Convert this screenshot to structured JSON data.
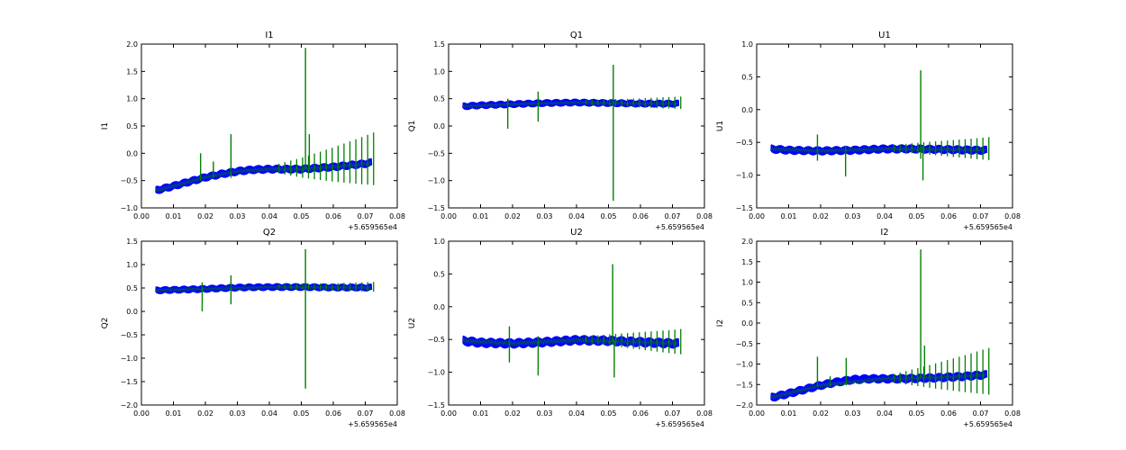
{
  "colors": {
    "primary_series": "#0000ff",
    "secondary_series": "#008000",
    "axes": "#000000"
  },
  "chart_data": [
    {
      "type": "line",
      "title": "I1",
      "xlabel": "",
      "ylabel": "I1",
      "xlim": [
        0.0,
        0.08
      ],
      "ylim": [
        -1.0,
        2.0
      ],
      "xticks": [
        "0.00",
        "0.01",
        "0.02",
        "0.03",
        "0.04",
        "0.05",
        "0.06",
        "0.07",
        "0.08"
      ],
      "yticks": [
        "−1.0",
        "−0.5",
        "0.0",
        "0.5",
        "1.0",
        "1.5",
        "2.0"
      ],
      "offset_label": "+5.659565e4",
      "series": [
        {
          "name": "blue",
          "x": [
            0.0045,
            0.01,
            0.015,
            0.02,
            0.025,
            0.03,
            0.035,
            0.04,
            0.045,
            0.05,
            0.055,
            0.06,
            0.065,
            0.07,
            0.072
          ],
          "y": [
            -0.68,
            -0.6,
            -0.52,
            -0.44,
            -0.38,
            -0.33,
            -0.3,
            -0.29,
            -0.29,
            -0.29,
            -0.27,
            -0.25,
            -0.22,
            -0.19,
            -0.17
          ],
          "band": 0.07
        },
        {
          "name": "green",
          "x": [
            0.0045,
            0.01,
            0.02,
            0.03,
            0.04,
            0.05,
            0.06,
            0.07,
            0.072
          ],
          "y": [
            -0.68,
            -0.6,
            -0.44,
            -0.33,
            -0.29,
            -0.29,
            -0.25,
            -0.19,
            -0.17
          ],
          "band": 0.05,
          "spikes": [
            [
              0.0185,
              0.0,
              -0.5
            ],
            [
              0.0225,
              -0.15,
              -0.45
            ],
            [
              0.028,
              0.35,
              -0.45
            ],
            [
              0.0513,
              1.93,
              -0.3
            ],
            [
              0.0525,
              0.35,
              -0.3
            ]
          ],
          "osc": {
            "start": 0.043,
            "end": 0.072,
            "step": 0.00185,
            "amp_start": 0.1,
            "amp_end": 0.55
          }
        }
      ]
    },
    {
      "type": "line",
      "title": "Q1",
      "xlabel": "",
      "ylabel": "Q1",
      "xlim": [
        0.0,
        0.08
      ],
      "ylim": [
        -1.5,
        1.5
      ],
      "xticks": [
        "0.00",
        "0.01",
        "0.02",
        "0.03",
        "0.04",
        "0.05",
        "0.06",
        "0.07",
        "0.08"
      ],
      "yticks": [
        "−1.5",
        "−1.0",
        "−0.5",
        "0.0",
        "0.5",
        "1.0",
        "1.5"
      ],
      "offset_label": "+5.659565e4",
      "series": [
        {
          "name": "blue",
          "x": [
            0.0045,
            0.01,
            0.02,
            0.03,
            0.04,
            0.05,
            0.06,
            0.07,
            0.072
          ],
          "y": [
            0.36,
            0.38,
            0.4,
            0.42,
            0.43,
            0.42,
            0.41,
            0.41,
            0.41
          ],
          "band": 0.06
        },
        {
          "name": "green",
          "x": [
            0.0045,
            0.02,
            0.04,
            0.06,
            0.072
          ],
          "y": [
            0.36,
            0.4,
            0.43,
            0.41,
            0.41
          ],
          "band": 0.04,
          "spikes": [
            [
              0.0185,
              0.5,
              -0.05
            ],
            [
              0.028,
              0.63,
              0.08
            ],
            [
              0.0515,
              1.12,
              -1.37
            ]
          ],
          "osc": {
            "start": 0.043,
            "end": 0.072,
            "step": 0.00185,
            "amp_start": 0.05,
            "amp_end": 0.13
          }
        }
      ]
    },
    {
      "type": "line",
      "title": "U1",
      "xlabel": "",
      "ylabel": "U1",
      "xlim": [
        0.0,
        0.08
      ],
      "ylim": [
        -1.5,
        1.0
      ],
      "xticks": [
        "0.00",
        "0.01",
        "0.02",
        "0.03",
        "0.04",
        "0.05",
        "0.06",
        "0.07",
        "0.08"
      ],
      "yticks": [
        "−1.5",
        "−1.0",
        "−0.5",
        "0.0",
        "0.5",
        "1.0"
      ],
      "offset_label": "+5.659565e4",
      "series": [
        {
          "name": "blue",
          "x": [
            0.0045,
            0.01,
            0.02,
            0.03,
            0.04,
            0.05,
            0.06,
            0.07,
            0.072
          ],
          "y": [
            -0.6,
            -0.62,
            -0.63,
            -0.62,
            -0.6,
            -0.6,
            -0.61,
            -0.62,
            -0.62
          ],
          "band": 0.06
        },
        {
          "name": "green",
          "x": [
            0.0045,
            0.02,
            0.04,
            0.06,
            0.072
          ],
          "y": [
            -0.6,
            -0.63,
            -0.6,
            -0.61,
            -0.62
          ],
          "band": 0.04,
          "spikes": [
            [
              0.019,
              -0.38,
              -0.78
            ],
            [
              0.0278,
              -0.55,
              -1.02
            ],
            [
              0.0513,
              0.6,
              -0.75
            ],
            [
              0.052,
              -0.55,
              -1.08
            ]
          ],
          "osc": {
            "start": 0.043,
            "end": 0.072,
            "step": 0.00185,
            "amp_start": 0.06,
            "amp_end": 0.2
          }
        }
      ]
    },
    {
      "type": "line",
      "title": "Q2",
      "xlabel": "",
      "ylabel": "Q2",
      "xlim": [
        0.0,
        0.08
      ],
      "ylim": [
        -2.0,
        1.5
      ],
      "xticks": [
        "0.00",
        "0.01",
        "0.02",
        "0.03",
        "0.04",
        "0.05",
        "0.06",
        "0.07",
        "0.08"
      ],
      "yticks": [
        "−2.0",
        "−1.5",
        "−1.0",
        "−0.5",
        "0.0",
        "0.5",
        "1.0",
        "1.5"
      ],
      "offset_label": "+5.659565e4",
      "series": [
        {
          "name": "blue",
          "x": [
            0.0045,
            0.01,
            0.02,
            0.03,
            0.04,
            0.05,
            0.06,
            0.07,
            0.072
          ],
          "y": [
            0.45,
            0.46,
            0.48,
            0.51,
            0.52,
            0.52,
            0.51,
            0.51,
            0.51
          ],
          "band": 0.07
        },
        {
          "name": "green",
          "x": [
            0.0045,
            0.02,
            0.04,
            0.06,
            0.072
          ],
          "y": [
            0.45,
            0.48,
            0.52,
            0.51,
            0.51
          ],
          "band": 0.05,
          "spikes": [
            [
              0.019,
              0.62,
              0.0
            ],
            [
              0.028,
              0.77,
              0.15
            ],
            [
              0.0513,
              1.33,
              -1.65
            ]
          ],
          "osc": {
            "start": 0.043,
            "end": 0.072,
            "step": 0.00185,
            "amp_start": 0.05,
            "amp_end": 0.12
          }
        }
      ]
    },
    {
      "type": "line",
      "title": "U2",
      "xlabel": "",
      "ylabel": "U2",
      "xlim": [
        0.0,
        0.08
      ],
      "ylim": [
        -1.5,
        1.0
      ],
      "xticks": [
        "0.00",
        "0.01",
        "0.02",
        "0.03",
        "0.04",
        "0.05",
        "0.06",
        "0.07",
        "0.08"
      ],
      "yticks": [
        "−1.5",
        "−1.0",
        "−0.5",
        "0.0",
        "0.5",
        "1.0"
      ],
      "offset_label": "+5.659565e4",
      "series": [
        {
          "name": "blue",
          "x": [
            0.0045,
            0.01,
            0.02,
            0.03,
            0.04,
            0.05,
            0.06,
            0.07,
            0.072
          ],
          "y": [
            -0.52,
            -0.55,
            -0.56,
            -0.54,
            -0.51,
            -0.52,
            -0.54,
            -0.56,
            -0.56
          ],
          "band": 0.07
        },
        {
          "name": "green",
          "x": [
            0.0045,
            0.02,
            0.04,
            0.06,
            0.072
          ],
          "y": [
            -0.52,
            -0.56,
            -0.51,
            -0.54,
            -0.56
          ],
          "band": 0.05,
          "spikes": [
            [
              0.019,
              -0.3,
              -0.85
            ],
            [
              0.028,
              -0.45,
              -1.05
            ],
            [
              0.0513,
              0.65,
              -0.55
            ],
            [
              0.0518,
              -0.5,
              -1.08
            ]
          ],
          "osc": {
            "start": 0.043,
            "end": 0.072,
            "step": 0.00185,
            "amp_start": 0.06,
            "amp_end": 0.22
          }
        }
      ]
    },
    {
      "type": "line",
      "title": "I2",
      "xlabel": "",
      "ylabel": "I2",
      "xlim": [
        0.0,
        0.08
      ],
      "ylim": [
        -2.0,
        2.0
      ],
      "xticks": [
        "0.00",
        "0.01",
        "0.02",
        "0.03",
        "0.04",
        "0.05",
        "0.06",
        "0.07",
        "0.08"
      ],
      "yticks": [
        "−2.0",
        "−1.5",
        "−1.0",
        "−0.5",
        "0.0",
        "0.5",
        "1.0",
        "1.5",
        "2.0"
      ],
      "offset_label": "+5.659565e4",
      "series": [
        {
          "name": "blue",
          "x": [
            0.0045,
            0.01,
            0.015,
            0.02,
            0.025,
            0.03,
            0.035,
            0.04,
            0.045,
            0.05,
            0.055,
            0.06,
            0.065,
            0.07,
            0.072
          ],
          "y": [
            -1.82,
            -1.72,
            -1.62,
            -1.52,
            -1.44,
            -1.38,
            -1.36,
            -1.36,
            -1.36,
            -1.35,
            -1.34,
            -1.32,
            -1.3,
            -1.27,
            -1.26
          ],
          "band": 0.1
        },
        {
          "name": "green",
          "x": [
            0.0045,
            0.02,
            0.04,
            0.06,
            0.072
          ],
          "y": [
            -1.82,
            -1.52,
            -1.36,
            -1.32,
            -1.26
          ],
          "band": 0.07,
          "spikes": [
            [
              0.019,
              -0.82,
              -1.55
            ],
            [
              0.023,
              -1.3,
              -1.55
            ],
            [
              0.028,
              -0.85,
              -1.52
            ],
            [
              0.0513,
              1.8,
              -1.35
            ],
            [
              0.0525,
              -0.55,
              -1.3
            ]
          ],
          "osc": {
            "start": 0.043,
            "end": 0.072,
            "step": 0.00185,
            "amp_start": 0.12,
            "amp_end": 0.65
          }
        }
      ]
    }
  ]
}
